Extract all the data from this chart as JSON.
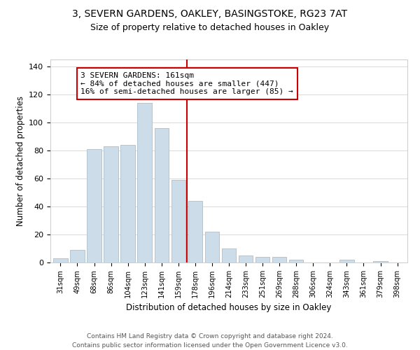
{
  "title1": "3, SEVERN GARDENS, OAKLEY, BASINGSTOKE, RG23 7AT",
  "title2": "Size of property relative to detached houses in Oakley",
  "xlabel": "Distribution of detached houses by size in Oakley",
  "ylabel": "Number of detached properties",
  "bar_color": "#ccdce8",
  "bar_edge_color": "#aabfce",
  "categories": [
    "31sqm",
    "49sqm",
    "68sqm",
    "86sqm",
    "104sqm",
    "123sqm",
    "141sqm",
    "159sqm",
    "178sqm",
    "196sqm",
    "214sqm",
    "233sqm",
    "251sqm",
    "269sqm",
    "288sqm",
    "306sqm",
    "324sqm",
    "343sqm",
    "361sqm",
    "379sqm",
    "398sqm"
  ],
  "values": [
    3,
    9,
    81,
    83,
    84,
    114,
    96,
    59,
    44,
    22,
    10,
    5,
    4,
    4,
    2,
    0,
    0,
    2,
    0,
    1,
    0
  ],
  "vline_color": "#cc0000",
  "annotation_title": "3 SEVERN GARDENS: 161sqm",
  "annotation_line1": "← 84% of detached houses are smaller (447)",
  "annotation_line2": "16% of semi-detached houses are larger (85) →",
  "ylim": [
    0,
    145
  ],
  "yticks": [
    0,
    20,
    40,
    60,
    80,
    100,
    120,
    140
  ],
  "footer1": "Contains HM Land Registry data © Crown copyright and database right 2024.",
  "footer2": "Contains public sector information licensed under the Open Government Licence v3.0."
}
